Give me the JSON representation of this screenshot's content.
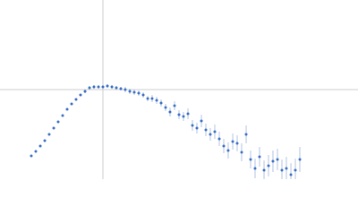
{
  "chart_data": {
    "type": "scatter",
    "color": "#3a6fc4",
    "error_color": "#9fb6de",
    "reference_color": "#cccccc",
    "xlim": [
      0,
      6.024
    ],
    "ylim": [
      0,
      2.208
    ],
    "reference_x": 1.732,
    "reference_y": 1.104,
    "x": [
      0.527,
      0.602,
      0.678,
      0.753,
      0.828,
      0.904,
      0.979,
      1.054,
      1.13,
      1.205,
      1.28,
      1.355,
      1.431,
      1.506,
      1.581,
      1.657,
      1.732,
      1.807,
      1.883,
      1.958,
      2.033,
      2.108,
      2.184,
      2.259,
      2.334,
      2.41,
      2.485,
      2.56,
      2.636,
      2.711,
      2.786,
      2.861,
      2.937,
      3.012,
      3.087,
      3.163,
      3.238,
      3.313,
      3.389,
      3.464,
      3.539,
      3.614,
      3.69,
      3.765,
      3.84,
      3.916,
      3.991,
      4.066,
      4.142,
      4.217,
      4.292,
      4.367,
      4.443,
      4.518,
      4.593,
      4.669,
      4.744,
      4.819,
      4.895,
      4.97,
      5.045
    ],
    "values": [
      0.287,
      0.342,
      0.408,
      0.475,
      0.552,
      0.629,
      0.706,
      0.784,
      0.861,
      0.927,
      0.982,
      1.038,
      1.082,
      1.126,
      1.137,
      1.137,
      1.137,
      1.148,
      1.137,
      1.126,
      1.115,
      1.104,
      1.082,
      1.071,
      1.06,
      1.038,
      0.993,
      0.993,
      0.971,
      0.938,
      0.883,
      0.828,
      0.905,
      0.795,
      0.773,
      0.806,
      0.662,
      0.629,
      0.717,
      0.607,
      0.552,
      0.585,
      0.497,
      0.408,
      0.353,
      0.464,
      0.442,
      0.331,
      0.552,
      0.243,
      0.132,
      0.276,
      0.11,
      0.166,
      0.221,
      0.243,
      0.11,
      0.132,
      0.055,
      0.11,
      0.243
    ],
    "errors": [
      0.011,
      0.011,
      0.011,
      0.011,
      0.011,
      0.011,
      0.011,
      0.011,
      0.011,
      0.011,
      0.011,
      0.011,
      0.022,
      0.022,
      0.022,
      0.022,
      0.022,
      0.022,
      0.022,
      0.022,
      0.022,
      0.033,
      0.033,
      0.033,
      0.033,
      0.033,
      0.033,
      0.044,
      0.044,
      0.044,
      0.044,
      0.055,
      0.055,
      0.055,
      0.055,
      0.066,
      0.066,
      0.066,
      0.077,
      0.077,
      0.077,
      0.088,
      0.088,
      0.088,
      0.099,
      0.099,
      0.099,
      0.11,
      0.11,
      0.11,
      0.121,
      0.121,
      0.121,
      0.132,
      0.132,
      0.132,
      0.132,
      0.143,
      0.143,
      0.143,
      0.155
    ]
  }
}
